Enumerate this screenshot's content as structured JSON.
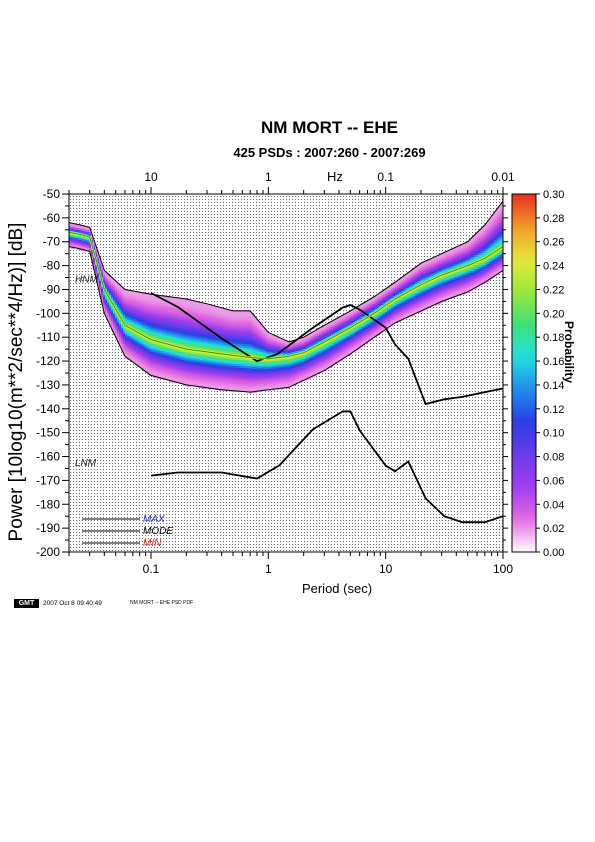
{
  "title": "NM MORT -- EHE",
  "subtitle": "425 PSDs : 2007:260 - 2007:269",
  "footer": {
    "logo": "GMT",
    "timestamp": "2007 Oct  8 09:40:49",
    "label": "NM MORT -- EHE PSD PDF"
  },
  "chart_data": {
    "type": "heatmap",
    "title": "NM MORT -- EHE",
    "subtitle": "425 PSDs : 2007:260 - 2007:269",
    "xlabel": "Period (sec)",
    "ylabel": "Power [10log10(m**2/sec**4/Hz)] [dB]",
    "top_axis_label": "Hz",
    "colorbar_label": "Probability",
    "x_scale": "log",
    "xlim": [
      0.02,
      100
    ],
    "ylim": [
      -200,
      -50
    ],
    "grid": true,
    "x_ticks": [
      "0.1",
      "1",
      "10",
      "100"
    ],
    "top_ticks": [
      "10",
      "1",
      "0.1",
      "0.01"
    ],
    "y_ticks": [
      "-50",
      "-60",
      "-70",
      "-80",
      "-90",
      "-100",
      "-110",
      "-120",
      "-130",
      "-140",
      "-150",
      "-160",
      "-170",
      "-180",
      "-190",
      "-200"
    ],
    "colorbar_ticks": [
      "0.30",
      "0.28",
      "0.26",
      "0.24",
      "0.22",
      "0.20",
      "0.18",
      "0.16",
      "0.14",
      "0.12",
      "0.10",
      "0.08",
      "0.06",
      "0.04",
      "0.02",
      "0.00"
    ],
    "colorbar_range": [
      0,
      0.3
    ],
    "colormap": [
      "#ffffff",
      "#e36bdf",
      "#a13cf0",
      "#6a3ce8",
      "#2a3ce6",
      "#1f8ee8",
      "#21e1e1",
      "#3fe07a",
      "#9be83a",
      "#e8e83a",
      "#f09a28",
      "#e63024"
    ],
    "legend": [
      {
        "name": "MAX",
        "color": "#1f2bd6"
      },
      {
        "name": "MODE",
        "color": "#000000"
      },
      {
        "name": "MIN",
        "color": "#e02020"
      }
    ],
    "reference_labels": [
      "HNM",
      "LNM"
    ],
    "series": [
      {
        "name": "HNM",
        "color": "#000000",
        "x": [
          0.1,
          0.17,
          0.4,
          0.8,
          1.2,
          2.4,
          4.3,
          5.0,
          6.0,
          10,
          12,
          15.6,
          21.9,
          31.6,
          45,
          70,
          100
        ],
        "y": [
          -91.5,
          -97.4,
          -110.5,
          -120,
          -117,
          -106,
          -97.6,
          -96.5,
          -98.4,
          -106,
          -113,
          -119,
          -138,
          -136,
          -135,
          -133,
          -131.5
        ]
      },
      {
        "name": "LNM",
        "color": "#000000",
        "x": [
          0.1,
          0.17,
          0.4,
          0.8,
          1.24,
          2.4,
          4.3,
          5.0,
          6.0,
          10,
          12,
          15.6,
          21.9,
          31.6,
          45,
          70,
          100
        ],
        "y": [
          -168,
          -166.7,
          -166.7,
          -169.2,
          -163.7,
          -148.6,
          -141.1,
          -141.1,
          -149.0,
          -163.8,
          -166.2,
          -162.1,
          -177.5,
          -185.0,
          -187.5,
          -187.5,
          -185.0
        ]
      },
      {
        "name": "MODE",
        "color": "#1f9e1f",
        "x": [
          0.02,
          0.025,
          0.03,
          0.04,
          0.06,
          0.1,
          0.2,
          0.4,
          0.7,
          1,
          1.5,
          2,
          3,
          5,
          8,
          12,
          20,
          30,
          50,
          70,
          100
        ],
        "y": [
          -66,
          -67,
          -68,
          -90,
          -105,
          -111,
          -115,
          -117,
          -118.5,
          -119,
          -118,
          -116.5,
          -112,
          -106,
          -100,
          -94,
          -88,
          -84,
          -80,
          -77,
          -72
        ]
      },
      {
        "name": "MAX",
        "color": "#000000",
        "x": [
          0.02,
          0.025,
          0.03,
          0.04,
          0.06,
          0.1,
          0.2,
          0.3,
          0.5,
          0.7,
          1,
          1.5,
          2,
          3,
          5,
          8,
          12,
          20,
          30,
          50,
          70,
          100
        ],
        "y": [
          -62,
          -63,
          -64,
          -82,
          -90,
          -92,
          -94,
          -96,
          -99,
          -99,
          -108,
          -112,
          -110,
          -105,
          -99,
          -93,
          -87,
          -79,
          -75,
          -70,
          -63,
          -53
        ]
      },
      {
        "name": "MIN",
        "color": "#000000",
        "x": [
          0.02,
          0.025,
          0.03,
          0.04,
          0.06,
          0.1,
          0.2,
          0.4,
          0.7,
          1,
          1.5,
          2,
          3,
          5,
          8,
          12,
          20,
          30,
          50,
          70,
          100
        ],
        "y": [
          -72,
          -73,
          -74,
          -100,
          -118,
          -126,
          -130,
          -132,
          -133,
          -132,
          -131,
          -128,
          -124,
          -117,
          -110,
          -104,
          -99,
          -95,
          -91,
          -87,
          -82
        ]
      }
    ]
  }
}
